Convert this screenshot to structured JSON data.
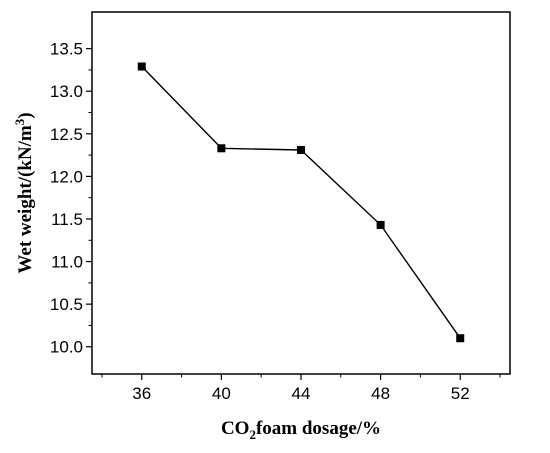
{
  "chart_data": {
    "type": "line",
    "title": "",
    "xlabel_parts": [
      "CO",
      "2",
      "foam dosage/%"
    ],
    "ylabel_parts": [
      "Wet weight/(kN/m",
      "3",
      ")"
    ],
    "x": [
      36,
      40,
      44,
      48,
      52
    ],
    "x_tick_labels": [
      "36",
      "40",
      "44",
      "48",
      "52"
    ],
    "xlim": [
      33.5,
      54.5
    ],
    "y_ticks": [
      10.0,
      10.5,
      11.0,
      11.5,
      12.0,
      12.5,
      13.0,
      13.5
    ],
    "y_tick_labels": [
      "10.0",
      "10.5",
      "11.0",
      "11.5",
      "12.0",
      "12.5",
      "13.0",
      "13.5"
    ],
    "ylim": [
      9.68,
      13.93
    ],
    "series": [
      {
        "values": [
          13.29,
          12.33,
          12.31,
          11.43,
          10.1
        ]
      }
    ],
    "marker": "square",
    "line_color": "#000000",
    "grid": false,
    "legend": "none"
  }
}
